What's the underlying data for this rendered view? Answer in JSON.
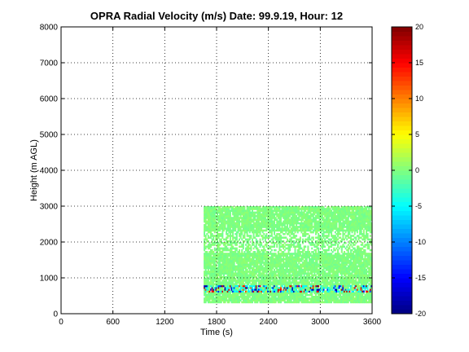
{
  "chart_data": {
    "type": "heatmap",
    "title": "OPRA Radial Velocity (m/s)  Date: 99.9.19, Hour: 12",
    "xlabel": "Time (s)",
    "ylabel": "Height (m AGL)",
    "xlim": [
      0,
      3600
    ],
    "ylim": [
      0,
      8000
    ],
    "x_ticks": [
      "0",
      "600",
      "1200",
      "1800",
      "2400",
      "3000",
      "3600"
    ],
    "x_tick_values": [
      0,
      600,
      1200,
      1800,
      2400,
      3000,
      3600
    ],
    "y_ticks": [
      "0",
      "1000",
      "2000",
      "3000",
      "4000",
      "5000",
      "6000",
      "7000",
      "8000"
    ],
    "y_tick_values": [
      0,
      1000,
      2000,
      3000,
      4000,
      5000,
      6000,
      7000,
      8000
    ],
    "grid": true,
    "colorbar": {
      "range": [
        -20,
        20
      ],
      "ticks": [
        "20",
        "15",
        "10",
        "5",
        "0",
        "-5",
        "-10",
        "-15",
        "-20"
      ],
      "tick_values": [
        20,
        15,
        10,
        5,
        0,
        -5,
        -10,
        -15,
        -20
      ],
      "colormap": "jet"
    },
    "data_extent": {
      "time": [
        1650,
        3600
      ],
      "height": [
        300,
        3000
      ]
    },
    "bands": [
      {
        "height": [
          300,
          1700
        ],
        "dominant_velocity": 0,
        "coverage": "dense"
      },
      {
        "height": [
          1700,
          2300
        ],
        "dominant_velocity": 0,
        "coverage": "sparse"
      },
      {
        "height": [
          2300,
          3000
        ],
        "dominant_velocity": 0,
        "coverage": "dense"
      }
    ],
    "strong_echo_layer": {
      "height": [
        600,
        800
      ],
      "velocity_range": [
        -20,
        20
      ]
    }
  }
}
